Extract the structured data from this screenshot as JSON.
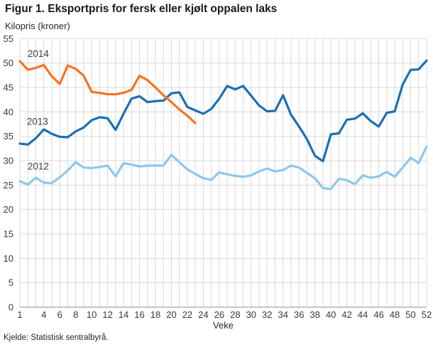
{
  "title": "Figur 1. Eksportpris for fersk eller kjølt oppalen laks",
  "subtitle": "Kilopris (kroner)",
  "x_axis_title": "Veke",
  "source": "Kjelde: Statistisk sentralbyrå.",
  "colors": {
    "grid": "#d9d9d9",
    "axis": "#a3a3a3",
    "tick_text": "#3a3a3a",
    "annotation_text": "#3d3d3d",
    "series_2014": "#f4731f",
    "series_2013": "#1a6fb5",
    "series_2012": "#8dc7ea"
  },
  "chart_data": {
    "type": "line",
    "title": "Figur 1. Eksportpris for fersk eller kjølt oppalen laks",
    "ylabel": "Kilopris (kroner)",
    "xlabel": "Veke",
    "ylim": [
      0,
      55
    ],
    "y_ticks": [
      0,
      5,
      10,
      15,
      20,
      25,
      30,
      35,
      40,
      45,
      50,
      55
    ],
    "x_range": [
      1,
      52
    ],
    "x_tick_labels": [
      1,
      4,
      6,
      8,
      10,
      12,
      14,
      16,
      18,
      20,
      22,
      24,
      26,
      28,
      30,
      32,
      34,
      36,
      38,
      40,
      42,
      44,
      46,
      48,
      50,
      52
    ],
    "grid": true,
    "legend_position": "inline-labels",
    "series": [
      {
        "name": "2012",
        "color": "#8dc7ea",
        "values": [
          25.8,
          25.1,
          26.5,
          25.5,
          25.4,
          26.6,
          28.0,
          29.7,
          28.6,
          28.5,
          28.7,
          29.0,
          26.8,
          29.5,
          29.2,
          28.8,
          29.0,
          29.0,
          29.0,
          31.2,
          29.7,
          28.2,
          27.3,
          26.4,
          26.1,
          27.6,
          27.2,
          26.9,
          26.7,
          27.0,
          27.8,
          28.4,
          27.8,
          28.1,
          29.0,
          28.6,
          27.5,
          26.4,
          24.4,
          24.2,
          26.3,
          26.0,
          25.2,
          27.0,
          26.5,
          26.8,
          27.7,
          26.7,
          28.6,
          30.6,
          29.5,
          32.9
        ]
      },
      {
        "name": "2013",
        "color": "#1a6fb5",
        "values": [
          33.5,
          33.3,
          34.6,
          36.4,
          35.5,
          34.9,
          34.8,
          36.0,
          36.8,
          38.3,
          38.9,
          38.7,
          36.3,
          39.6,
          42.7,
          43.2,
          42.0,
          42.2,
          42.3,
          43.8,
          44.0,
          41.0,
          40.3,
          39.6,
          40.6,
          42.7,
          45.3,
          44.6,
          45.3,
          43.3,
          41.3,
          40.1,
          40.2,
          43.4,
          39.4,
          37.0,
          34.4,
          31.0,
          29.9,
          35.4,
          35.6,
          38.4,
          38.6,
          39.7,
          38.1,
          37.0,
          39.8,
          40.1,
          45.6,
          48.6,
          48.7,
          50.5
        ]
      },
      {
        "name": "2014",
        "color": "#f4731f",
        "values": [
          50.4,
          48.6,
          49.0,
          49.6,
          47.3,
          45.7,
          49.5,
          48.8,
          47.4,
          44.1,
          43.9,
          43.6,
          43.6,
          43.9,
          44.5,
          47.4,
          46.5,
          45.0,
          43.4,
          42.0,
          40.5,
          39.2,
          37.7
        ]
      }
    ],
    "annotations": [
      {
        "text": "2014",
        "week": 3.3,
        "value": 51.9
      },
      {
        "text": "2013",
        "week": 3.2,
        "value": 38.0
      },
      {
        "text": "2012",
        "week": 3.3,
        "value": 28.8
      }
    ]
  }
}
